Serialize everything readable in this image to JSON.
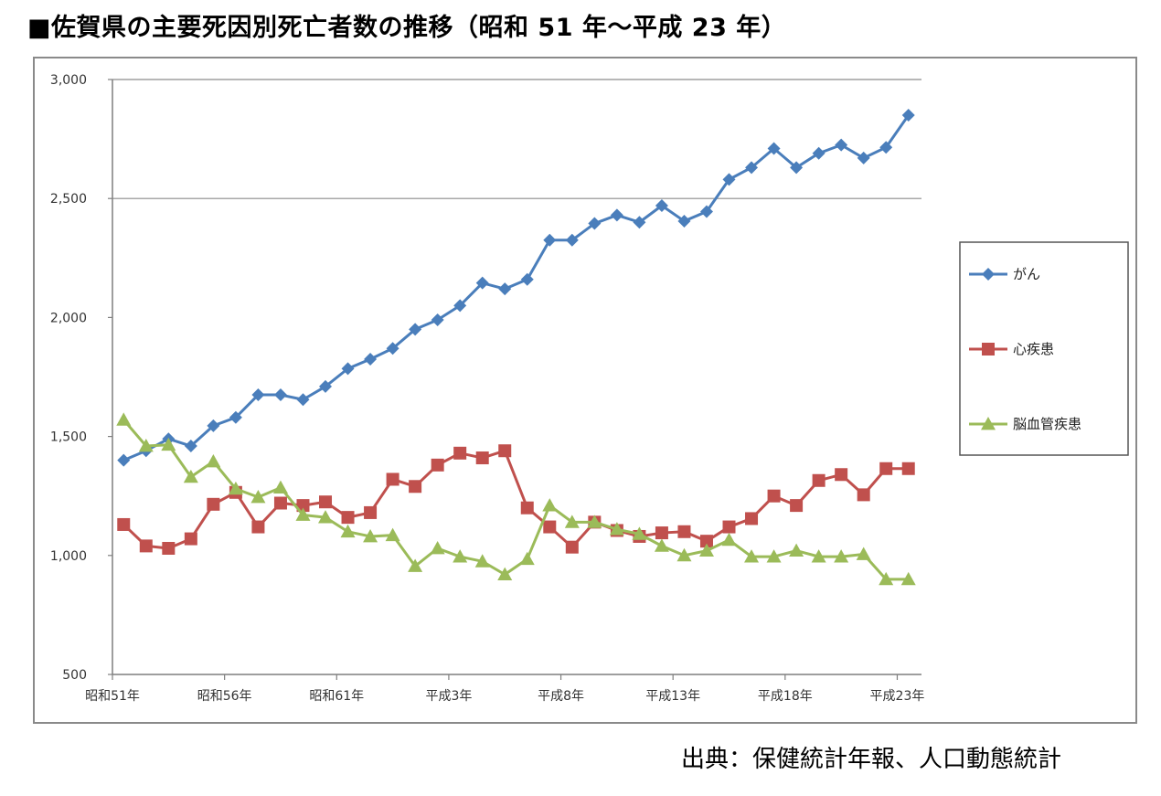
{
  "title": "■佐賀県の主要死因別死亡者数の推移（昭和 51 年～平成 23 年）",
  "source": "出典：保健統計年報、人口動態統計",
  "chart_data": {
    "type": "line",
    "title": "",
    "xlabel": "",
    "ylabel": "",
    "ylim": [
      500,
      3000
    ],
    "yticks": [
      500,
      1000,
      1500,
      2000,
      2500,
      3000
    ],
    "ytick_labels": [
      "500",
      "1,000",
      "1,500",
      "2,000",
      "2,500",
      "3,000"
    ],
    "grid": "horizontal gridlines at 2,500 and 3,000",
    "legend_position": "right",
    "x_tick_labels": [
      {
        "index": 0,
        "label": "昭和51年"
      },
      {
        "index": 5,
        "label": "昭和56年"
      },
      {
        "index": 10,
        "label": "昭和61年"
      },
      {
        "index": 15,
        "label": "平成3年"
      },
      {
        "index": 20,
        "label": "平成8年"
      },
      {
        "index": 25,
        "label": "平成13年"
      },
      {
        "index": 30,
        "label": "平成18年"
      },
      {
        "index": 35,
        "label": "平成23年"
      }
    ],
    "categories": [
      "昭和51年",
      "昭和52年",
      "昭和53年",
      "昭和54年",
      "昭和55年",
      "昭和56年",
      "昭和57年",
      "昭和58年",
      "昭和59年",
      "昭和60年",
      "昭和61年",
      "昭和62年",
      "昭和63年",
      "平成元年",
      "平成2年",
      "平成3年",
      "平成4年",
      "平成5年",
      "平成6年",
      "平成7年",
      "平成8年",
      "平成9年",
      "平成10年",
      "平成11年",
      "平成12年",
      "平成13年",
      "平成14年",
      "平成15年",
      "平成16年",
      "平成17年",
      "平成18年",
      "平成19年",
      "平成20年",
      "平成21年",
      "平成22年",
      "平成23年"
    ],
    "series": [
      {
        "name": "がん",
        "color": "#4a7ebb",
        "marker": "diamond",
        "values": [
          1400,
          1440,
          1490,
          1460,
          1545,
          1580,
          1675,
          1675,
          1655,
          1710,
          1785,
          1825,
          1870,
          1950,
          1990,
          2050,
          2145,
          2120,
          2160,
          2325,
          2325,
          2395,
          2430,
          2400,
          2470,
          2405,
          2445,
          2580,
          2630,
          2710,
          2630,
          2690,
          2725,
          2670,
          2715,
          2850
        ]
      },
      {
        "name": "心疾患",
        "color": "#c0504d",
        "marker": "square",
        "values": [
          1130,
          1040,
          1030,
          1070,
          1215,
          1265,
          1120,
          1220,
          1210,
          1225,
          1160,
          1180,
          1320,
          1290,
          1380,
          1430,
          1410,
          1440,
          1200,
          1120,
          1035,
          1140,
          1105,
          1080,
          1095,
          1100,
          1060,
          1120,
          1155,
          1250,
          1210,
          1315,
          1340,
          1255,
          1365,
          1365
        ]
      },
      {
        "name": "脳血管疾患",
        "color": "#9bbb59",
        "marker": "triangle",
        "values": [
          1570,
          1460,
          1465,
          1330,
          1395,
          1280,
          1245,
          1285,
          1170,
          1160,
          1100,
          1080,
          1085,
          955,
          1030,
          995,
          975,
          920,
          985,
          1210,
          1140,
          1140,
          1110,
          1090,
          1040,
          1000,
          1020,
          1065,
          995,
          995,
          1020,
          995,
          995,
          1005,
          900,
          900
        ]
      }
    ]
  }
}
